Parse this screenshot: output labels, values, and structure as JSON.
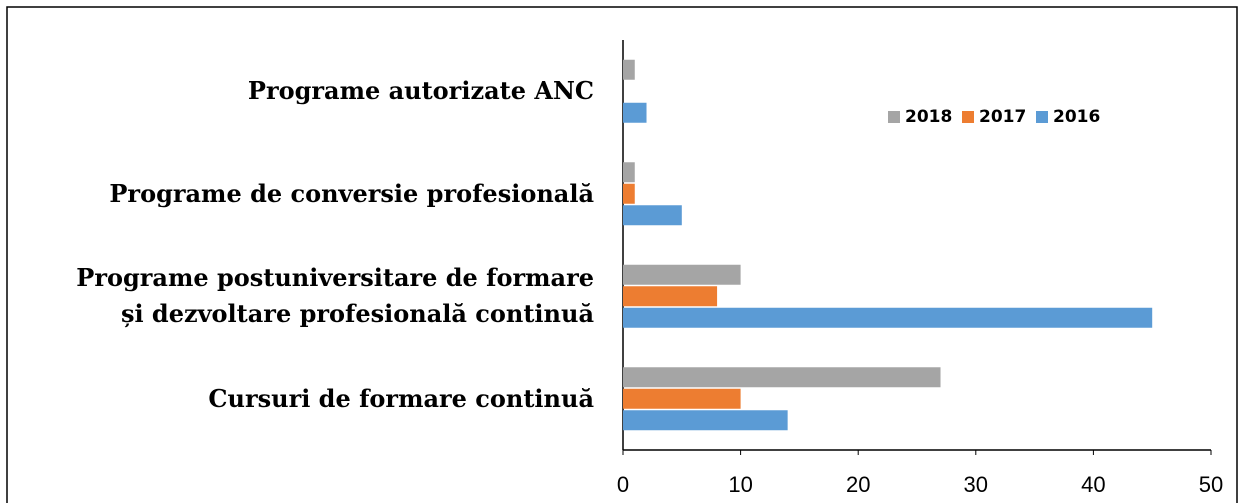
{
  "chart_data": {
    "type": "barh",
    "categories": [
      "Programe autorizate ANC",
      "Programe de conversie profesională",
      "Programe postuniversitare de formare\nși dezvoltare profesională continuă",
      "Cursuri de formare continuă"
    ],
    "series": [
      {
        "name": "2018",
        "color": "#a5a5a5",
        "values": [
          1,
          1,
          10,
          27
        ]
      },
      {
        "name": "2017",
        "color": "#ed7d31",
        "values": [
          0,
          1,
          8,
          10
        ]
      },
      {
        "name": "2016",
        "color": "#5b9bd5",
        "values": [
          2,
          5,
          45,
          14
        ]
      }
    ],
    "xlim": [
      0,
      50
    ],
    "xticks": [
      0,
      10,
      20,
      30,
      40,
      50
    ],
    "grid": false,
    "legend": "top-right"
  }
}
